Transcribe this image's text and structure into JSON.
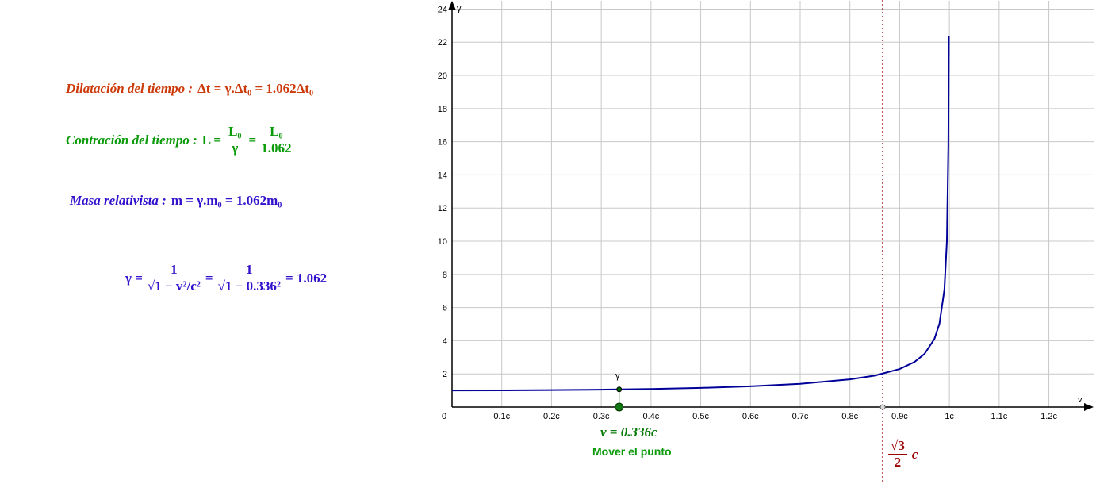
{
  "chart_data": {
    "type": "line",
    "x_axis_label": "v",
    "y_axis_label": "γ",
    "xlim": [
      0,
      1.29
    ],
    "ylim": [
      0,
      24.5
    ],
    "xticks": [
      {
        "value": 0,
        "label": "0"
      },
      {
        "value": 0.1,
        "label": "0.1c"
      },
      {
        "value": 0.2,
        "label": "0.2c"
      },
      {
        "value": 0.3,
        "label": "0.3c"
      },
      {
        "value": 0.4,
        "label": "0.4c"
      },
      {
        "value": 0.5,
        "label": "0.5c"
      },
      {
        "value": 0.6,
        "label": "0.6c"
      },
      {
        "value": 0.7,
        "label": "0.7c"
      },
      {
        "value": 0.8,
        "label": "0.8c"
      },
      {
        "value": 0.9,
        "label": "0.9c"
      },
      {
        "value": 1,
        "label": "1c"
      },
      {
        "value": 1.1,
        "label": "1.1c"
      },
      {
        "value": 1.2,
        "label": "1.2c"
      }
    ],
    "yticks": [
      2,
      4,
      6,
      8,
      10,
      12,
      14,
      16,
      18,
      20,
      22,
      24
    ],
    "grid": true,
    "x": [
      0,
      0.1,
      0.2,
      0.3,
      0.4,
      0.5,
      0.6,
      0.7,
      0.8,
      0.85,
      0.9,
      0.93,
      0.95,
      0.97,
      0.98,
      0.99,
      0.995,
      0.998,
      0.999
    ],
    "series": [
      {
        "color": "#000099",
        "values": [
          1,
          1.005,
          1.021,
          1.048,
          1.091,
          1.155,
          1.25,
          1.4,
          1.667,
          1.898,
          2.294,
          2.72,
          3.203,
          4.113,
          5.025,
          7.089,
          10.01,
          15.82,
          22.37
        ]
      }
    ],
    "point": {
      "x": 0.336,
      "y": 1.062,
      "label": "γ",
      "color": "#006600"
    },
    "asymptote": {
      "x": 0.866,
      "color": "#990000",
      "numerator": "√3",
      "denominator": "2",
      "unit": "c"
    },
    "v_label": "v = 0.336c",
    "move_label": "Mover el punto"
  },
  "formulas": {
    "dilation": {
      "label": "Dilatación del tiempo :",
      "expr": "Δt = γ.Δt₀ = 1.062Δt₀"
    },
    "contraction": {
      "label": "Contración del tiempo :",
      "lhs": "L =",
      "num1": "L₀",
      "den1": "γ",
      "eq": "=",
      "num2": "L₀",
      "den2": "1.062"
    },
    "mass": {
      "label": "Masa relativista :",
      "expr": "m = γ.m₀ = 1.062m₀"
    },
    "gamma": {
      "lhs": "γ =",
      "num1": "1",
      "den1": "√1 − v²/c²",
      "eq1": "=",
      "num2": "1",
      "den2": "√1 − 0.336²",
      "rhs": "= 1.062"
    }
  }
}
